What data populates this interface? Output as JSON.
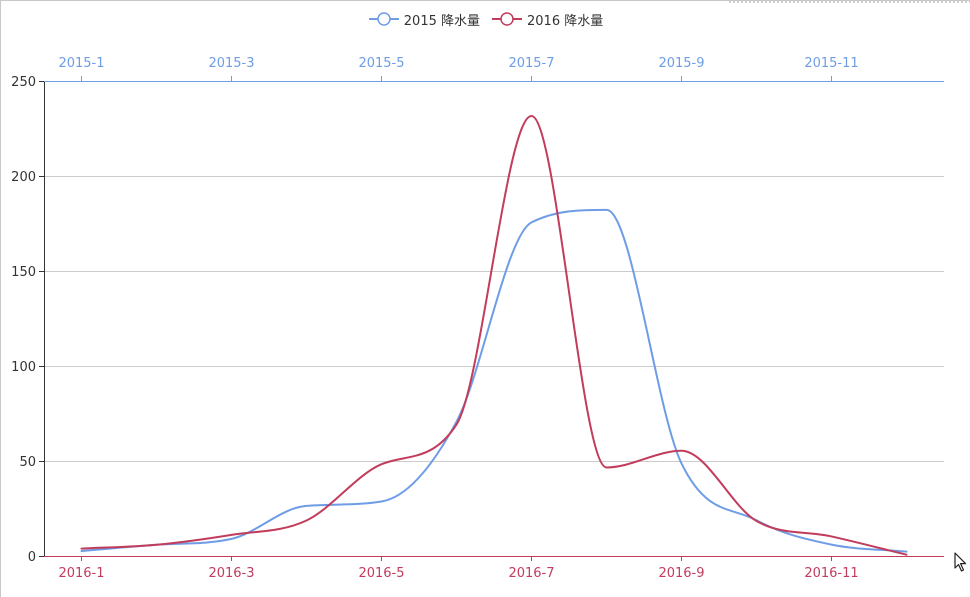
{
  "chart_data": {
    "type": "line",
    "legend_position": "top-center",
    "x_axis_top": {
      "color": "#6e9de6",
      "categories": [
        "2015-1",
        "2015-2",
        "2015-3",
        "2015-4",
        "2015-5",
        "2015-6",
        "2015-7",
        "2015-8",
        "2015-9",
        "2015-10",
        "2015-11",
        "2015-12"
      ],
      "labels_shown": [
        "2015-1",
        "2015-3",
        "2015-5",
        "2015-7",
        "2015-9",
        "2015-11"
      ]
    },
    "x_axis_bottom": {
      "color": "#c23c5c",
      "categories": [
        "2016-1",
        "2016-2",
        "2016-3",
        "2016-4",
        "2016-5",
        "2016-6",
        "2016-7",
        "2016-8",
        "2016-9",
        "2016-10",
        "2016-11",
        "2016-12"
      ],
      "labels_shown": [
        "2016-1",
        "2016-3",
        "2016-5",
        "2016-7",
        "2016-9",
        "2016-11"
      ]
    },
    "y_axis": {
      "min": 0,
      "max": 250,
      "ticks": [
        "0",
        "50",
        "100",
        "150",
        "200",
        "250"
      ],
      "grid": true
    },
    "series": [
      {
        "name": "2015 降水量",
        "color": "#6e9de6",
        "axis": "top",
        "values": [
          2.6,
          5.9,
          9.0,
          26.4,
          28.7,
          70.7,
          175.6,
          182.2,
          48.7,
          18.8,
          6.0,
          2.3
        ]
      },
      {
        "name": "2016 降水量",
        "color": "#c23c5c",
        "axis": "bottom",
        "values": [
          3.9,
          5.9,
          11.1,
          18.7,
          48.3,
          69.2,
          231.6,
          46.6,
          55.4,
          18.4,
          10.3,
          0.7
        ]
      }
    ]
  },
  "legend": {
    "items": [
      {
        "label": "2015 降水量",
        "color": "#6e9de6"
      },
      {
        "label": "2016 降水量",
        "color": "#c23c5c"
      }
    ]
  },
  "cursor": {
    "icon": "mouse-pointer-icon"
  }
}
